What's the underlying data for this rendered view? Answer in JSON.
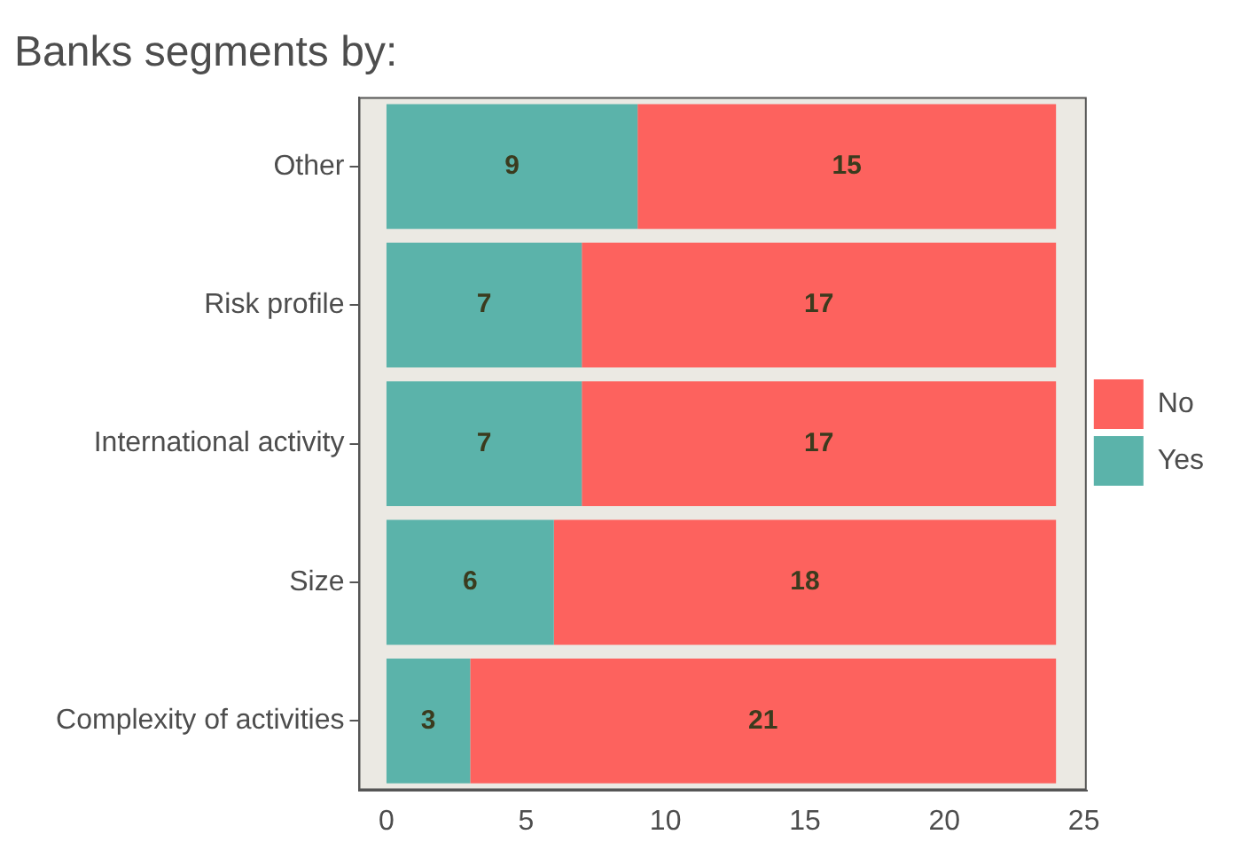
{
  "chart_data": {
    "type": "bar",
    "title": "Banks segments by:",
    "orientation": "horizontal",
    "stacked": true,
    "categories": [
      "Other",
      "Risk profile",
      "International activity",
      "Size",
      "Complexity of activities"
    ],
    "series": [
      {
        "name": "Yes",
        "color": "#5bb3aa",
        "values": [
          9,
          7,
          7,
          6,
          3
        ]
      },
      {
        "name": "No",
        "color": "#fd625e",
        "values": [
          15,
          17,
          17,
          18,
          21
        ]
      }
    ],
    "xlim": [
      -1,
      25.1
    ],
    "xticks": [
      0,
      5,
      10,
      15,
      20,
      25
    ],
    "grid": false,
    "legend": "right",
    "data_labels": true
  }
}
